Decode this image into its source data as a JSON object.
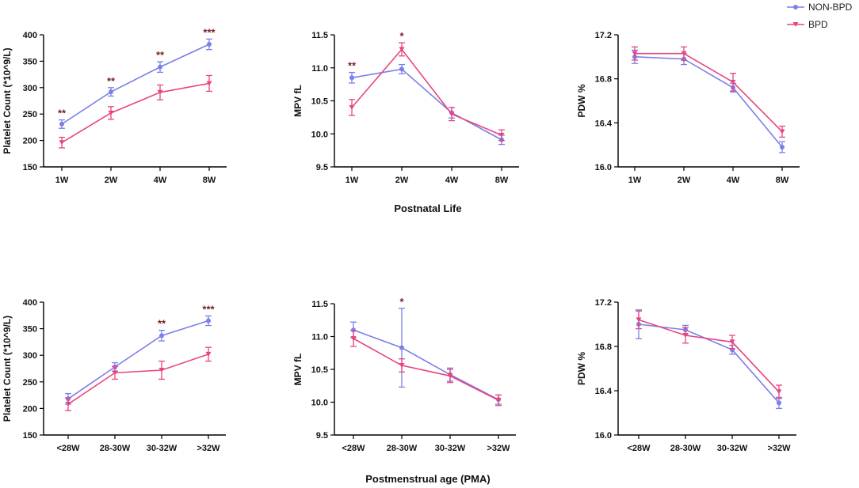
{
  "legend": {
    "items": [
      {
        "name": "NON-BPD",
        "color": "#7b7fe8",
        "marker": "circle"
      },
      {
        "name": "BPD",
        "color": "#e8457e",
        "marker": "triangle-down"
      }
    ]
  },
  "group_labels": {
    "top": "Postnatal Life",
    "bottom": "Postmenstrual age (PMA)"
  },
  "chart_data": [
    {
      "type": "line",
      "ylabel": "Platelet Count (*10^9/L)",
      "categories": [
        "1W",
        "2W",
        "4W",
        "8W"
      ],
      "ylim": [
        150,
        400
      ],
      "yticks": [
        150,
        200,
        250,
        300,
        350,
        400
      ],
      "series": [
        {
          "name": "NON-BPD",
          "values": [
            231,
            292,
            339,
            382
          ],
          "errors": [
            8,
            8,
            10,
            10
          ]
        },
        {
          "name": "BPD",
          "values": [
            196,
            252,
            291,
            308
          ],
          "errors": [
            10,
            12,
            14,
            15
          ]
        }
      ],
      "annotations": [
        "**",
        "**",
        "**",
        "***"
      ]
    },
    {
      "type": "line",
      "ylabel": "MPV fL",
      "categories": [
        "1W",
        "2W",
        "4W",
        "8W"
      ],
      "ylim": [
        9.5,
        11.5
      ],
      "yticks": [
        9.5,
        10.0,
        10.5,
        11.0,
        11.5
      ],
      "series": [
        {
          "name": "NON-BPD",
          "values": [
            10.85,
            10.98,
            10.32,
            9.91
          ],
          "errors": [
            0.08,
            0.07,
            0.08,
            0.07
          ]
        },
        {
          "name": "BPD",
          "values": [
            10.4,
            11.28,
            10.3,
            9.98
          ],
          "errors": [
            0.12,
            0.1,
            0.1,
            0.08
          ]
        }
      ],
      "annotations": [
        "**",
        "*",
        "",
        ""
      ]
    },
    {
      "type": "line",
      "ylabel": "PDW %",
      "categories": [
        "1W",
        "2W",
        "4W",
        "8W"
      ],
      "ylim": [
        16.0,
        17.2
      ],
      "yticks": [
        16.0,
        16.4,
        16.8,
        17.2
      ],
      "series": [
        {
          "name": "NON-BPD",
          "values": [
            17.0,
            16.98,
            16.72,
            16.18
          ],
          "errors": [
            0.06,
            0.05,
            0.04,
            0.05
          ]
        },
        {
          "name": "BPD",
          "values": [
            17.03,
            17.03,
            16.77,
            16.32
          ],
          "errors": [
            0.06,
            0.06,
            0.08,
            0.05
          ]
        }
      ],
      "annotations": [
        "",
        "",
        "",
        ""
      ]
    },
    {
      "type": "line",
      "ylabel": "Platelet Count (*10^9/L)",
      "categories": [
        "<28W",
        "28-30W",
        "30-32W",
        ">32W"
      ],
      "ylim": [
        150,
        400
      ],
      "yticks": [
        150,
        200,
        250,
        300,
        350,
        400
      ],
      "series": [
        {
          "name": "NON-BPD",
          "values": [
            218,
            278,
            337,
            365
          ],
          "errors": [
            10,
            8,
            10,
            9
          ]
        },
        {
          "name": "BPD",
          "values": [
            208,
            267,
            272,
            302
          ],
          "errors": [
            12,
            12,
            17,
            13
          ]
        }
      ],
      "annotations": [
        "",
        "",
        "**",
        "***"
      ]
    },
    {
      "type": "line",
      "ylabel": "MPV fL",
      "categories": [
        "<28W",
        "28-30W",
        "30-32W",
        ">32W"
      ],
      "ylim": [
        9.5,
        11.5
      ],
      "yticks": [
        9.5,
        10.0,
        10.5,
        11.0,
        11.5
      ],
      "series": [
        {
          "name": "NON-BPD",
          "values": [
            11.1,
            10.83,
            10.42,
            10.04
          ],
          "errors": [
            0.12,
            0.6,
            0.1,
            0.07
          ]
        },
        {
          "name": "BPD",
          "values": [
            10.97,
            10.56,
            10.4,
            10.03
          ],
          "errors": [
            0.12,
            0.1,
            0.1,
            0.08
          ]
        }
      ],
      "annotations": [
        "",
        "*",
        "",
        ""
      ]
    },
    {
      "type": "line",
      "ylabel": "PDW %",
      "categories": [
        "<28W",
        "28-30W",
        "30-32W",
        ">32W"
      ],
      "ylim": [
        16.0,
        17.2
      ],
      "yticks": [
        16.0,
        16.4,
        16.8,
        17.2
      ],
      "series": [
        {
          "name": "NON-BPD",
          "values": [
            17.0,
            16.95,
            16.77,
            16.29
          ],
          "errors": [
            0.13,
            0.04,
            0.04,
            0.05
          ]
        },
        {
          "name": "BPD",
          "values": [
            17.04,
            16.9,
            16.84,
            16.39
          ],
          "errors": [
            0.08,
            0.07,
            0.06,
            0.06
          ]
        }
      ],
      "annotations": [
        "",
        "",
        "",
        ""
      ]
    }
  ]
}
